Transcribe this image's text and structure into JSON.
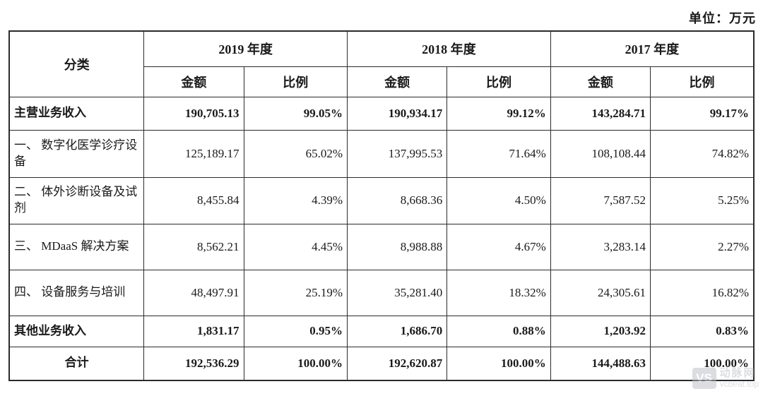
{
  "meta": {
    "unit_label": "单位：万元"
  },
  "table": {
    "corner_header": "分类",
    "year_groups": [
      {
        "label": "2019 年度"
      },
      {
        "label": "2018 年度"
      },
      {
        "label": "2017 年度"
      }
    ],
    "sub_headers": {
      "amount": "金额",
      "ratio": "比例"
    },
    "rows": [
      {
        "category": "主营业务收入",
        "values": [
          "190,705.13",
          "99.05%",
          "190,934.17",
          "99.12%",
          "143,284.71",
          "99.17%"
        ]
      },
      {
        "category": "一、 数字化医学诊疗设备",
        "values": [
          "125,189.17",
          "65.02%",
          "137,995.53",
          "71.64%",
          "108,108.44",
          "74.82%"
        ]
      },
      {
        "category": "二、 体外诊断设备及试剂",
        "values": [
          "8,455.84",
          "4.39%",
          "8,668.36",
          "4.50%",
          "7,587.52",
          "5.25%"
        ]
      },
      {
        "category": "三、 MDaaS 解决方案",
        "values": [
          "8,562.21",
          "4.45%",
          "8,988.88",
          "4.67%",
          "3,283.14",
          "2.27%"
        ]
      },
      {
        "category": "四、 设备服务与培训",
        "values": [
          "48,497.91",
          "25.19%",
          "35,281.40",
          "18.32%",
          "24,305.61",
          "16.82%"
        ]
      },
      {
        "category": "其他业务收入",
        "values": [
          "1,831.17",
          "0.95%",
          "1,686.70",
          "0.88%",
          "1,203.92",
          "0.83%"
        ]
      },
      {
        "category": "合计",
        "values": [
          "192,536.29",
          "100.00%",
          "192,620.87",
          "100.00%",
          "144,488.63",
          "100.00%"
        ]
      }
    ]
  },
  "watermark": {
    "logo": "VS",
    "name": "动脉网",
    "site": "vcbeat.top"
  }
}
